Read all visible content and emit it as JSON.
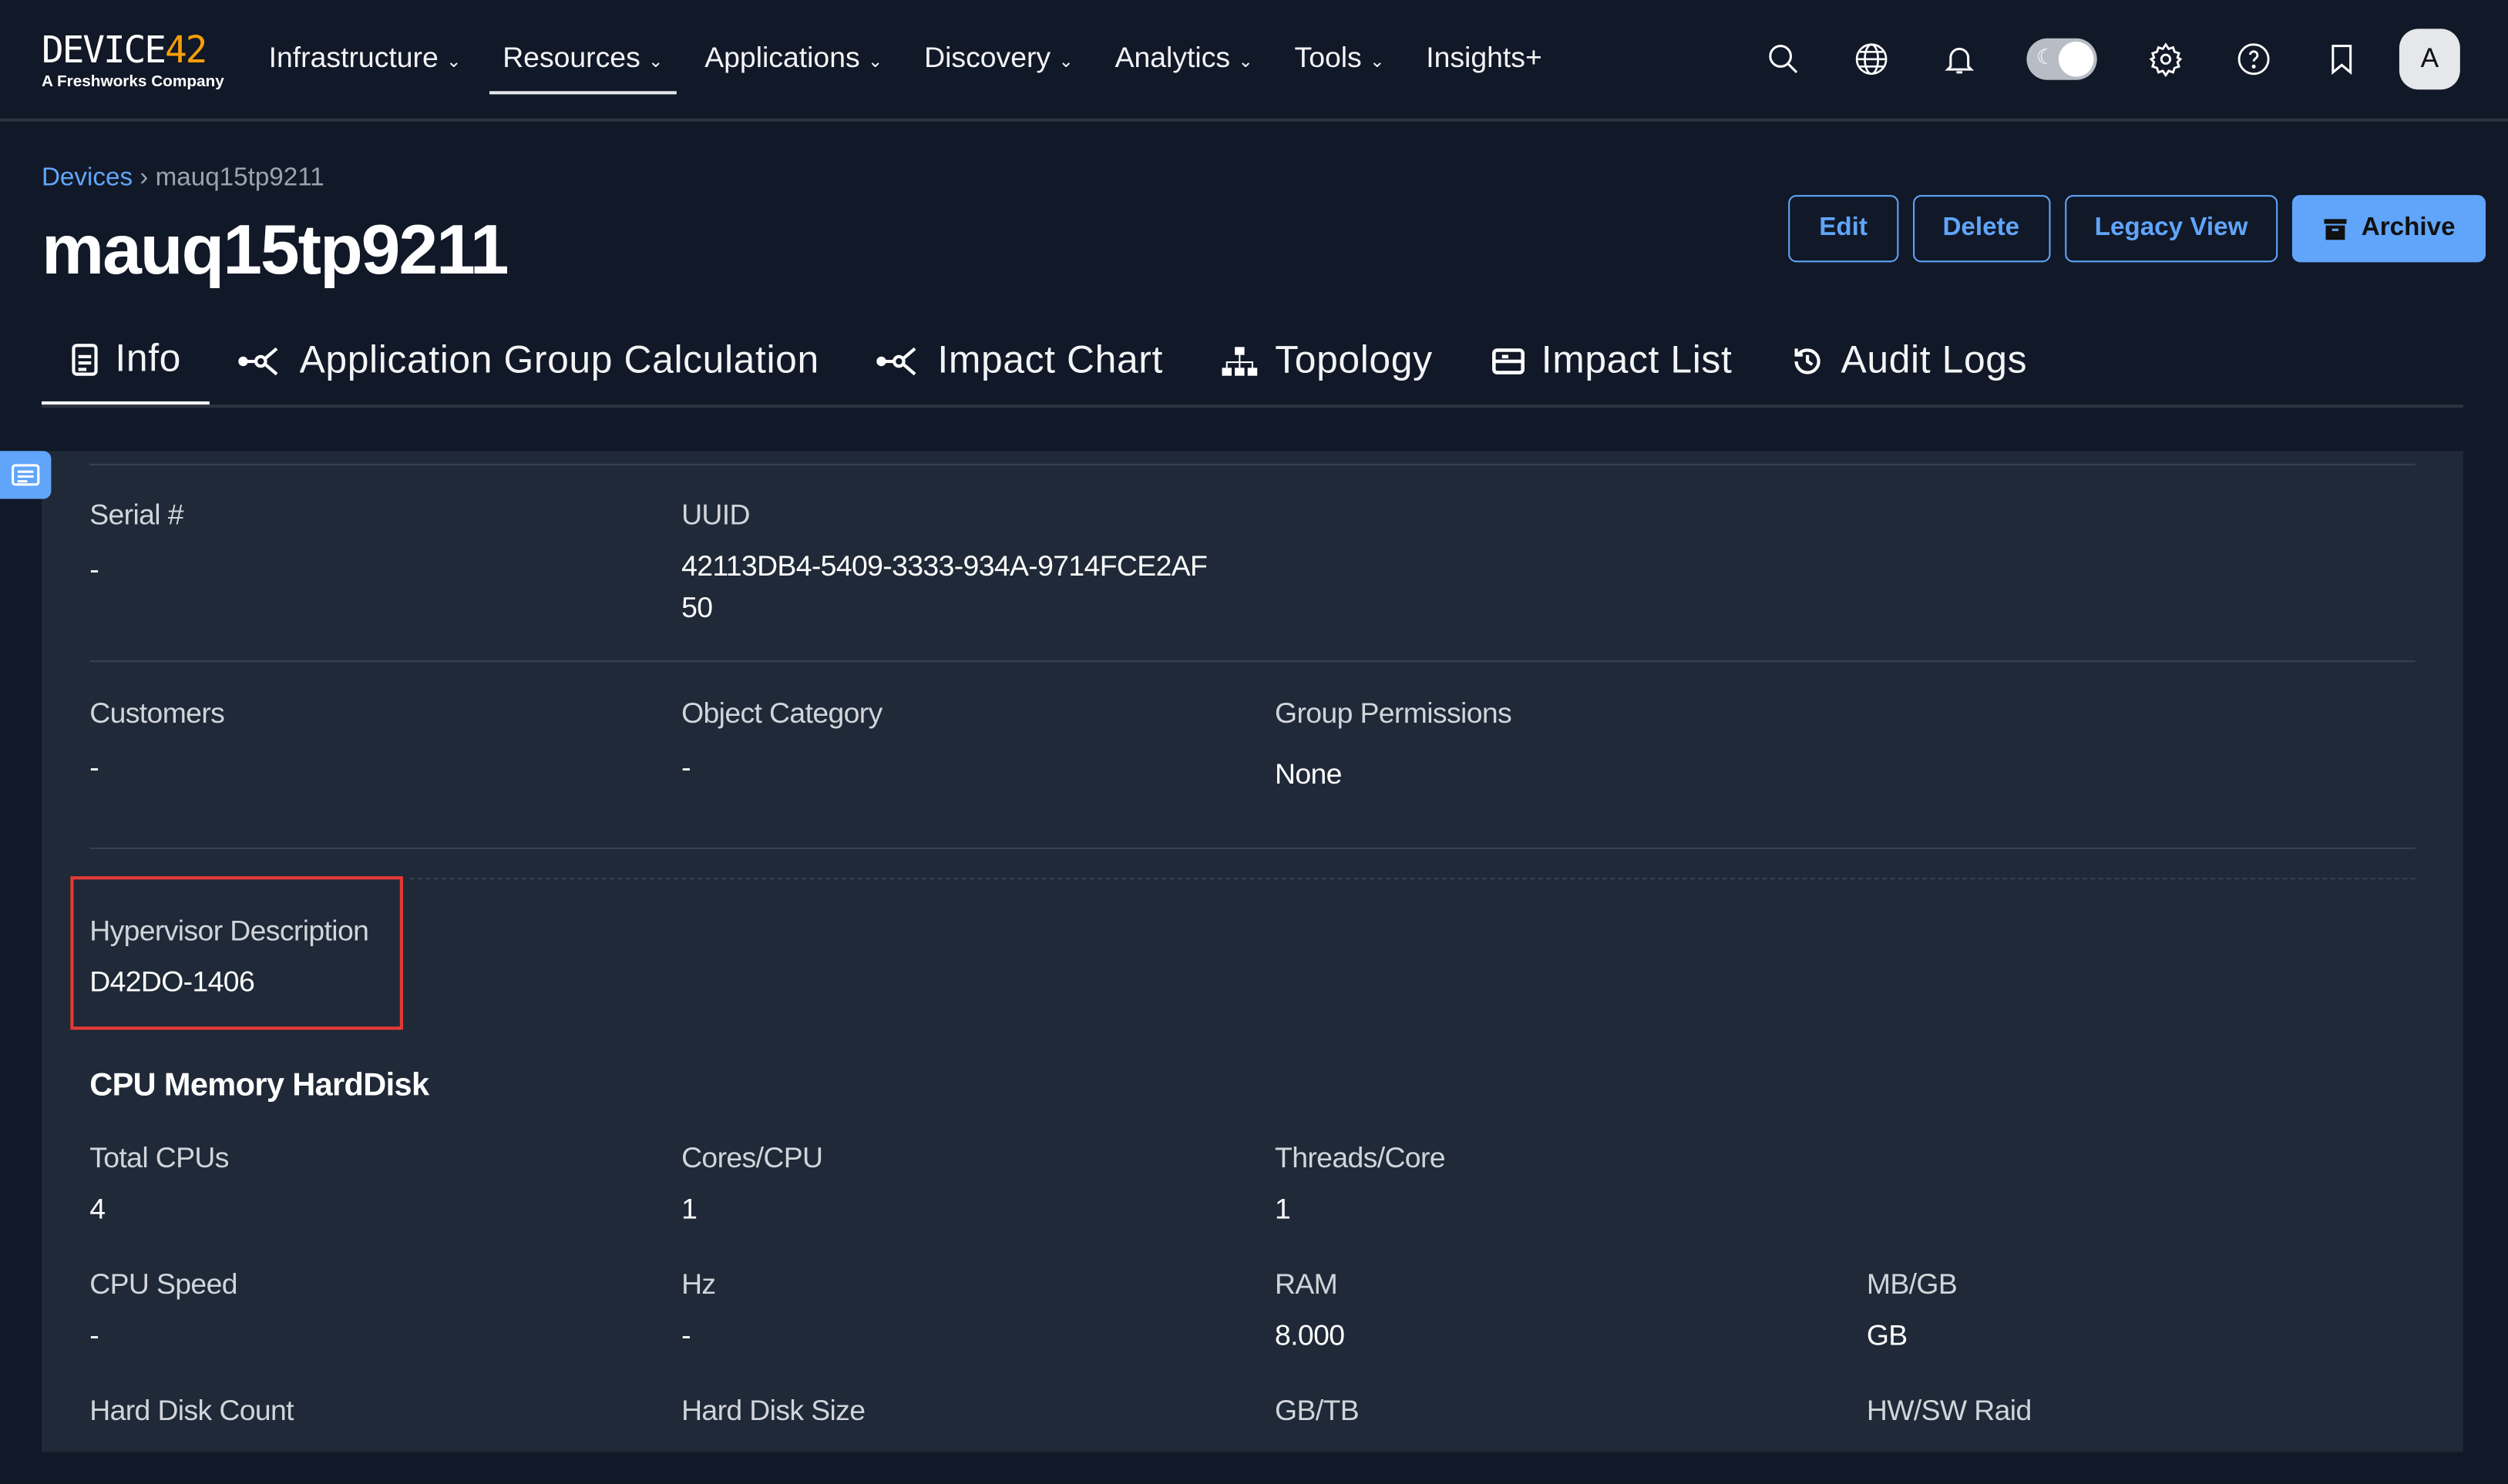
{
  "logo": {
    "brand_a": "DEVICE",
    "brand_b": "42",
    "sub": "A Freshworks Company"
  },
  "nav": [
    {
      "label": "Infrastructure",
      "dropdown": true
    },
    {
      "label": "Resources",
      "dropdown": true,
      "active": true
    },
    {
      "label": "Applications",
      "dropdown": true
    },
    {
      "label": "Discovery",
      "dropdown": true
    },
    {
      "label": "Analytics",
      "dropdown": true
    },
    {
      "label": "Tools",
      "dropdown": true
    },
    {
      "label": "Insights+",
      "dropdown": false
    }
  ],
  "header_icons": [
    "search-icon",
    "globe-icon",
    "bell-icon",
    "theme-toggle",
    "gear-icon",
    "help-icon",
    "bookmark-icon"
  ],
  "avatar": "A",
  "breadcrumb": {
    "root": "Devices",
    "sep": "›",
    "current": "mauq15tp9211"
  },
  "title": "mauq15tp9211",
  "actions": {
    "edit": "Edit",
    "delete": "Delete",
    "legacy": "Legacy View",
    "archive": "Archive"
  },
  "tabs": [
    "Info",
    "Application Group Calculation",
    "Impact Chart",
    "Topology",
    "Impact List",
    "Audit Logs"
  ],
  "fields": {
    "serial": {
      "label": "Serial #",
      "value": "-"
    },
    "uuid": {
      "label": "UUID",
      "value1": "42113DB4-5409-3333-934A-9714FCE2AF",
      "value2": "50"
    },
    "customers": {
      "label": "Customers",
      "value": "-"
    },
    "object_category": {
      "label": "Object Category",
      "value": "-"
    },
    "group_permissions": {
      "label": "Group Permissions",
      "value": "None"
    },
    "hypervisor": {
      "label": "Hypervisor Description",
      "value": "D42DO-1406"
    }
  },
  "cpu_section": {
    "title": "CPU Memory HardDisk",
    "total_cpus": {
      "label": "Total CPUs",
      "value": "4"
    },
    "cores": {
      "label": "Cores/CPU",
      "value": "1"
    },
    "threads": {
      "label": "Threads/Core",
      "value": "1"
    },
    "cpu_speed": {
      "label": "CPU Speed",
      "value": "-"
    },
    "hz": {
      "label": "Hz",
      "value": "-"
    },
    "ram": {
      "label": "RAM",
      "value": "8.000"
    },
    "mbgb": {
      "label": "MB/GB",
      "value": "GB"
    },
    "hd_count": {
      "label": "Hard Disk Count"
    },
    "hd_size": {
      "label": "Hard Disk Size"
    },
    "gbtb": {
      "label": "GB/TB"
    },
    "raid": {
      "label": "HW/SW Raid"
    }
  },
  "colors": {
    "accent": "#60a5fa",
    "bg": "#111827",
    "panel": "#1f2937",
    "highlight": "#e53935"
  }
}
